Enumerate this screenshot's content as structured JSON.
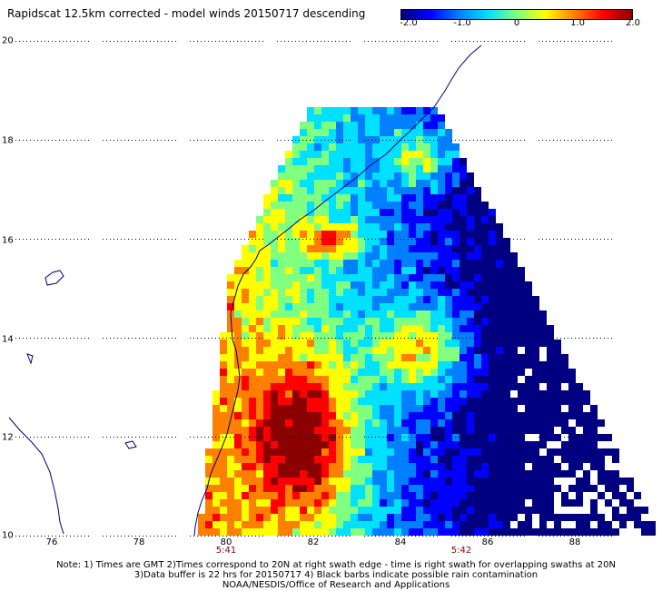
{
  "title": "Rapidscat 12.5km corrected - model winds 20150717 descending",
  "colorbar": {
    "ticks": [
      "-2.0",
      "-1.0",
      "0",
      "1.0",
      "2.0"
    ],
    "colors": [
      "#000080",
      "#0000ff",
      "#0080ff",
      "#00e0ff",
      "#80ff80",
      "#ffff00",
      "#ff8000",
      "#ff0000",
      "#8b0000"
    ]
  },
  "map": {
    "lon_range": [
      75,
      90
    ],
    "lat_range": [
      10,
      20
    ],
    "y_labels": [
      "20",
      "18",
      "16",
      "14",
      "12",
      "10"
    ],
    "x_labels": [
      "76",
      "78",
      "80",
      "82",
      "84",
      "86",
      "88"
    ],
    "colors": {
      "coast": "#000080",
      "land_bg": "#ffffff"
    }
  },
  "times": {
    "left": "5:41",
    "right": "5:42"
  },
  "notes": [
    "Note: 1) Times are GMT 2)Times correspond to 20N at right swath edge - time is right swath for overlapping swaths at 20N",
    "3)Data buffer is 22 hrs for 20150717 4) Black barbs indicate possible rain contamination",
    "NOAA/NESDIS/Office of Research and Applications"
  ]
}
